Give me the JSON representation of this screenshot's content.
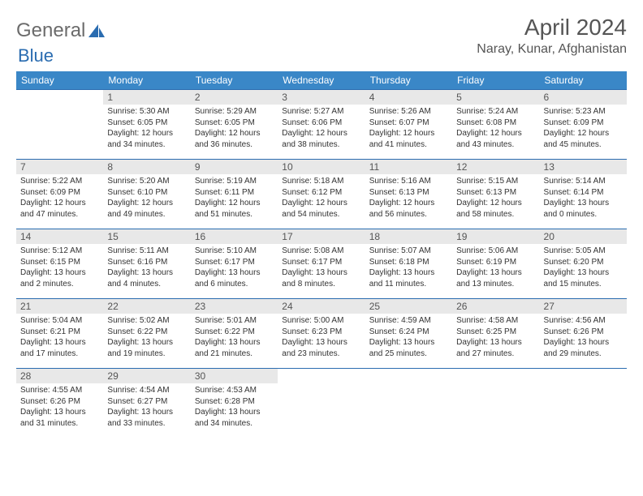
{
  "logo": {
    "text1": "General",
    "text2": "Blue"
  },
  "title": "April 2024",
  "location": "Naray, Kunar, Afghanistan",
  "colors": {
    "header_bg": "#3a87c7",
    "header_text": "#ffffff",
    "daynum_bg": "#e8e8e8",
    "border": "#2a6cb0",
    "logo_grey": "#6b6b6b",
    "logo_blue": "#2a6cb0"
  },
  "day_names": [
    "Sunday",
    "Monday",
    "Tuesday",
    "Wednesday",
    "Thursday",
    "Friday",
    "Saturday"
  ],
  "weeks": [
    [
      null,
      {
        "n": "1",
        "sr": "5:30 AM",
        "ss": "6:05 PM",
        "dl": "12 hours and 34 minutes."
      },
      {
        "n": "2",
        "sr": "5:29 AM",
        "ss": "6:05 PM",
        "dl": "12 hours and 36 minutes."
      },
      {
        "n": "3",
        "sr": "5:27 AM",
        "ss": "6:06 PM",
        "dl": "12 hours and 38 minutes."
      },
      {
        "n": "4",
        "sr": "5:26 AM",
        "ss": "6:07 PM",
        "dl": "12 hours and 41 minutes."
      },
      {
        "n": "5",
        "sr": "5:24 AM",
        "ss": "6:08 PM",
        "dl": "12 hours and 43 minutes."
      },
      {
        "n": "6",
        "sr": "5:23 AM",
        "ss": "6:09 PM",
        "dl": "12 hours and 45 minutes."
      }
    ],
    [
      {
        "n": "7",
        "sr": "5:22 AM",
        "ss": "6:09 PM",
        "dl": "12 hours and 47 minutes."
      },
      {
        "n": "8",
        "sr": "5:20 AM",
        "ss": "6:10 PM",
        "dl": "12 hours and 49 minutes."
      },
      {
        "n": "9",
        "sr": "5:19 AM",
        "ss": "6:11 PM",
        "dl": "12 hours and 51 minutes."
      },
      {
        "n": "10",
        "sr": "5:18 AM",
        "ss": "6:12 PM",
        "dl": "12 hours and 54 minutes."
      },
      {
        "n": "11",
        "sr": "5:16 AM",
        "ss": "6:13 PM",
        "dl": "12 hours and 56 minutes."
      },
      {
        "n": "12",
        "sr": "5:15 AM",
        "ss": "6:13 PM",
        "dl": "12 hours and 58 minutes."
      },
      {
        "n": "13",
        "sr": "5:14 AM",
        "ss": "6:14 PM",
        "dl": "13 hours and 0 minutes."
      }
    ],
    [
      {
        "n": "14",
        "sr": "5:12 AM",
        "ss": "6:15 PM",
        "dl": "13 hours and 2 minutes."
      },
      {
        "n": "15",
        "sr": "5:11 AM",
        "ss": "6:16 PM",
        "dl": "13 hours and 4 minutes."
      },
      {
        "n": "16",
        "sr": "5:10 AM",
        "ss": "6:17 PM",
        "dl": "13 hours and 6 minutes."
      },
      {
        "n": "17",
        "sr": "5:08 AM",
        "ss": "6:17 PM",
        "dl": "13 hours and 8 minutes."
      },
      {
        "n": "18",
        "sr": "5:07 AM",
        "ss": "6:18 PM",
        "dl": "13 hours and 11 minutes."
      },
      {
        "n": "19",
        "sr": "5:06 AM",
        "ss": "6:19 PM",
        "dl": "13 hours and 13 minutes."
      },
      {
        "n": "20",
        "sr": "5:05 AM",
        "ss": "6:20 PM",
        "dl": "13 hours and 15 minutes."
      }
    ],
    [
      {
        "n": "21",
        "sr": "5:04 AM",
        "ss": "6:21 PM",
        "dl": "13 hours and 17 minutes."
      },
      {
        "n": "22",
        "sr": "5:02 AM",
        "ss": "6:22 PM",
        "dl": "13 hours and 19 minutes."
      },
      {
        "n": "23",
        "sr": "5:01 AM",
        "ss": "6:22 PM",
        "dl": "13 hours and 21 minutes."
      },
      {
        "n": "24",
        "sr": "5:00 AM",
        "ss": "6:23 PM",
        "dl": "13 hours and 23 minutes."
      },
      {
        "n": "25",
        "sr": "4:59 AM",
        "ss": "6:24 PM",
        "dl": "13 hours and 25 minutes."
      },
      {
        "n": "26",
        "sr": "4:58 AM",
        "ss": "6:25 PM",
        "dl": "13 hours and 27 minutes."
      },
      {
        "n": "27",
        "sr": "4:56 AM",
        "ss": "6:26 PM",
        "dl": "13 hours and 29 minutes."
      }
    ],
    [
      {
        "n": "28",
        "sr": "4:55 AM",
        "ss": "6:26 PM",
        "dl": "13 hours and 31 minutes."
      },
      {
        "n": "29",
        "sr": "4:54 AM",
        "ss": "6:27 PM",
        "dl": "13 hours and 33 minutes."
      },
      {
        "n": "30",
        "sr": "4:53 AM",
        "ss": "6:28 PM",
        "dl": "13 hours and 34 minutes."
      },
      null,
      null,
      null,
      null
    ]
  ],
  "labels": {
    "sunrise": "Sunrise:",
    "sunset": "Sunset:",
    "daylight": "Daylight:"
  }
}
